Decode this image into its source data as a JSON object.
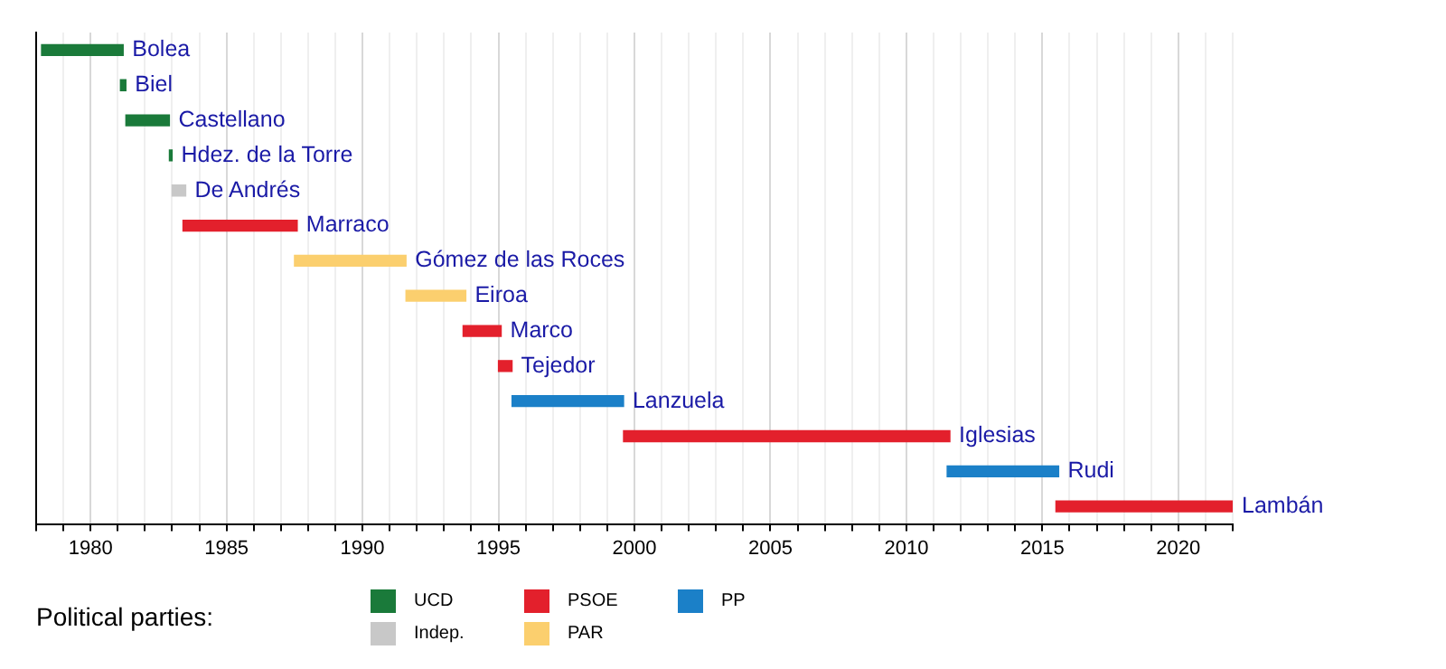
{
  "chart_data": {
    "type": "bar",
    "orientation": "horizontal",
    "legend": "bottom",
    "legend_title": "Political parties:",
    "grid": "x",
    "tick_labels": "x",
    "categories": [
      "Bolea",
      "Biel",
      "Castellano",
      "Hdez. de la Torre",
      "De Andrés",
      "Marraco",
      "Gómez de las Roces",
      "Eiroa",
      "Marco",
      "Tejedor",
      "Lanzuela",
      "Iglesias",
      "Rudi",
      "Lambán"
    ],
    "xlim": [
      1978,
      2022
    ],
    "xticks": [
      {
        "value": 1978,
        "label": null
      },
      {
        "value": 1979,
        "label": null
      },
      1980,
      {
        "value": 1981,
        "label": null
      },
      {
        "value": 1982,
        "label": null
      },
      {
        "value": 1983,
        "label": null
      },
      {
        "value": 1984,
        "label": null
      },
      1985,
      {
        "value": 1986,
        "label": null
      },
      {
        "value": 1987,
        "label": null
      },
      {
        "value": 1988,
        "label": null
      },
      {
        "value": 1989,
        "label": null
      },
      1990,
      {
        "value": 1991,
        "label": null
      },
      {
        "value": 1992,
        "label": null
      },
      {
        "value": 1993,
        "label": null
      },
      {
        "value": 1994,
        "label": null
      },
      1995,
      {
        "value": 1996,
        "label": null
      },
      {
        "value": 1997,
        "label": null
      },
      {
        "value": 1998,
        "label": null
      },
      {
        "value": 1999,
        "label": null
      },
      2000,
      {
        "value": 2001,
        "label": null
      },
      {
        "value": 2002,
        "label": null
      },
      {
        "value": 2003,
        "label": null
      },
      {
        "value": 2004,
        "label": null
      },
      2005,
      {
        "value": 2006,
        "label": null
      },
      {
        "value": 2007,
        "label": null
      },
      {
        "value": 2008,
        "label": null
      },
      {
        "value": 2009,
        "label": null
      },
      2010,
      {
        "value": 2011,
        "label": null
      },
      {
        "value": 2012,
        "label": null
      },
      {
        "value": 2013,
        "label": null
      },
      {
        "value": 2014,
        "label": null
      },
      2015,
      {
        "value": 2016,
        "label": null
      },
      {
        "value": 2017,
        "label": null
      },
      {
        "value": 2018,
        "label": null
      },
      {
        "value": 2019,
        "label": null
      },
      2020,
      {
        "value": 2021,
        "label": null
      },
      {
        "value": 2022,
        "label": null
      }
    ],
    "series": [
      {
        "name": "UCD",
        "color": "#1a7a3a",
        "values": [
          3.0,
          0.2,
          1.6,
          0.1,
          null,
          null,
          null,
          null,
          null,
          null,
          null,
          null,
          null,
          null
        ],
        "base": [
          1978.2,
          1981.1,
          1981.3,
          1982.9,
          null,
          null,
          null,
          null,
          null,
          null,
          null,
          null,
          null,
          null
        ]
      },
      {
        "name": "Indep.",
        "color": "#c8c8c8",
        "values": [
          null,
          null,
          null,
          null,
          0.5,
          null,
          null,
          null,
          null,
          null,
          null,
          null,
          null,
          null
        ],
        "base": [
          null,
          null,
          null,
          null,
          1983.0,
          null,
          null,
          null,
          null,
          null,
          null,
          null,
          null,
          null
        ]
      },
      {
        "name": "PSOE",
        "color": "#e3202c",
        "values": [
          null,
          null,
          null,
          null,
          null,
          4.2,
          null,
          null,
          1.4,
          0.5,
          null,
          12.0,
          null,
          6.5
        ],
        "base": [
          null,
          null,
          null,
          null,
          null,
          1983.4,
          null,
          null,
          1993.7,
          1995.0,
          null,
          1999.6,
          null,
          2015.5
        ]
      },
      {
        "name": "PAR",
        "color": "#fbcf6e",
        "values": [
          null,
          null,
          null,
          null,
          null,
          null,
          4.1,
          2.2,
          null,
          null,
          null,
          null,
          null,
          null
        ],
        "base": [
          null,
          null,
          null,
          null,
          null,
          null,
          1987.5,
          1991.6,
          null,
          null,
          null,
          null,
          null,
          null
        ]
      },
      {
        "name": "PP",
        "color": "#1b80c8",
        "values": [
          null,
          null,
          null,
          null,
          null,
          null,
          null,
          null,
          null,
          null,
          4.1,
          null,
          4.1,
          null
        ],
        "base": [
          null,
          null,
          null,
          null,
          null,
          null,
          null,
          null,
          null,
          null,
          1995.5,
          null,
          2011.5,
          null
        ]
      }
    ]
  }
}
